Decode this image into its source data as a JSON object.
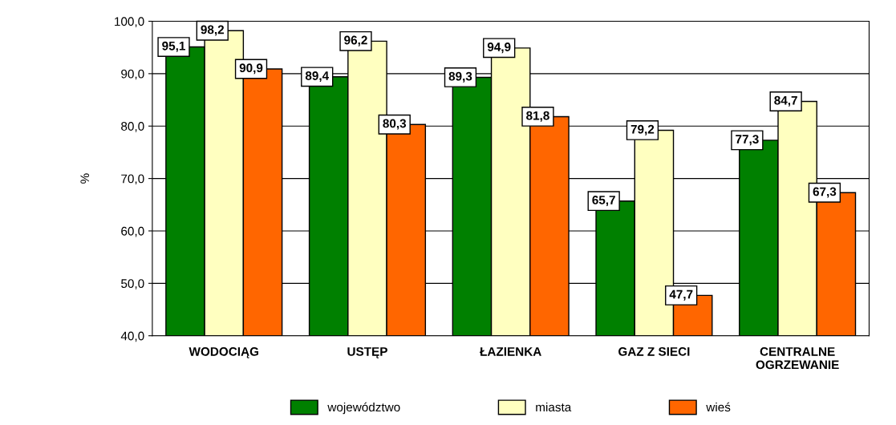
{
  "chart_data": {
    "type": "bar",
    "ylabel": "%",
    "categories": [
      "WODOCIĄG",
      "USTĘP",
      "ŁAZIENKA",
      "GAZ Z SIECI",
      "CENTRALNE\nOGRZEWANIE"
    ],
    "series": [
      {
        "name": "województwo",
        "color": "#008000",
        "values": [
          95.1,
          89.4,
          89.3,
          65.7,
          77.3
        ],
        "value_labels": [
          "95,1",
          "89,4",
          "89,3",
          "65,7",
          "77,3"
        ]
      },
      {
        "name": "miasta",
        "color": "#ffffc0",
        "values": [
          98.2,
          96.2,
          94.9,
          79.2,
          84.7
        ],
        "value_labels": [
          "98,2",
          "96,2",
          "94,9",
          "79,2",
          "84,7"
        ]
      },
      {
        "name": "wieś",
        "color": "#ff6600",
        "values": [
          90.9,
          80.3,
          81.8,
          47.7,
          67.3
        ],
        "value_labels": [
          "90,9",
          "80,3",
          "81,8",
          "47,7",
          "67,3"
        ]
      }
    ],
    "ylim": [
      40,
      100
    ],
    "yticks": [
      {
        "value": 40,
        "label": "40,0"
      },
      {
        "value": 50,
        "label": "50,0"
      },
      {
        "value": 60,
        "label": "60,0"
      },
      {
        "value": 70,
        "label": "70,0"
      },
      {
        "value": 80,
        "label": "80,0"
      },
      {
        "value": 90,
        "label": "90,0"
      },
      {
        "value": 100,
        "label": "100,0"
      }
    ],
    "grid": "y",
    "legend": "bottom"
  }
}
